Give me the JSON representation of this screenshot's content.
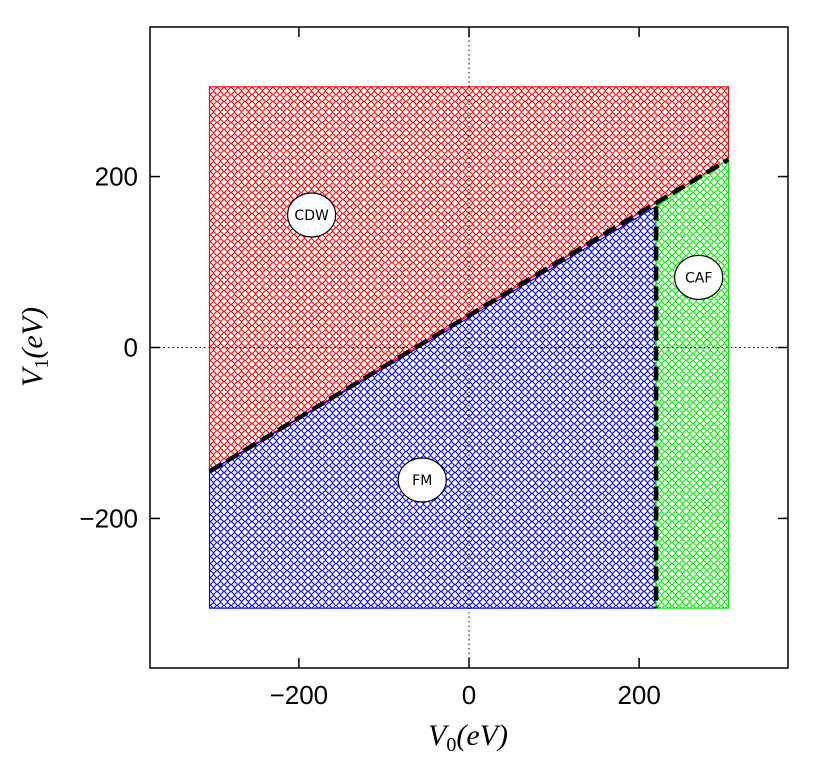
{
  "chart_data": {
    "type": "area",
    "title": "",
    "xlabel": {
      "main": "V",
      "sub": "0",
      "rest": "(eV)"
    },
    "ylabel": {
      "main": "V",
      "sub": "1",
      "rest": "(eV)"
    },
    "xlim": [
      -375,
      375
    ],
    "ylim": [
      -375,
      375
    ],
    "xticks": [
      -200,
      0,
      200
    ],
    "yticks": [
      -200,
      0,
      200
    ],
    "xtick_labels": [
      "−200",
      "0",
      "200"
    ],
    "ytick_labels": [
      "−200",
      "0",
      "200"
    ],
    "grid": false,
    "zero_lines": true,
    "domain": {
      "x": [
        -305,
        305
      ],
      "y": [
        -305,
        305
      ]
    },
    "phases": [
      {
        "name": "CDW",
        "color": "#ff0000",
        "polygon": [
          [
            -305,
            -145
          ],
          [
            -305,
            305
          ],
          [
            305,
            305
          ],
          [
            305,
            220
          ]
        ],
        "label_at": [
          -185,
          155
        ]
      },
      {
        "name": "FM",
        "color": "#0000ff",
        "polygon": [
          [
            -305,
            -145
          ],
          [
            220,
            165
          ],
          [
            220,
            -305
          ],
          [
            -305,
            -305
          ]
        ],
        "label_at": [
          -55,
          -155
        ]
      },
      {
        "name": "CAF",
        "color": "#00ee00",
        "polygon": [
          [
            220,
            165
          ],
          [
            305,
            220
          ],
          [
            305,
            -305
          ],
          [
            220,
            -305
          ]
        ],
        "label_at": [
          270,
          82
        ]
      }
    ],
    "boundaries": [
      {
        "from": [
          -305,
          -145
        ],
        "to": [
          305,
          220
        ],
        "style": "dashed"
      },
      {
        "from": [
          220,
          165
        ],
        "to": [
          220,
          -305
        ],
        "style": "dashed"
      }
    ]
  }
}
